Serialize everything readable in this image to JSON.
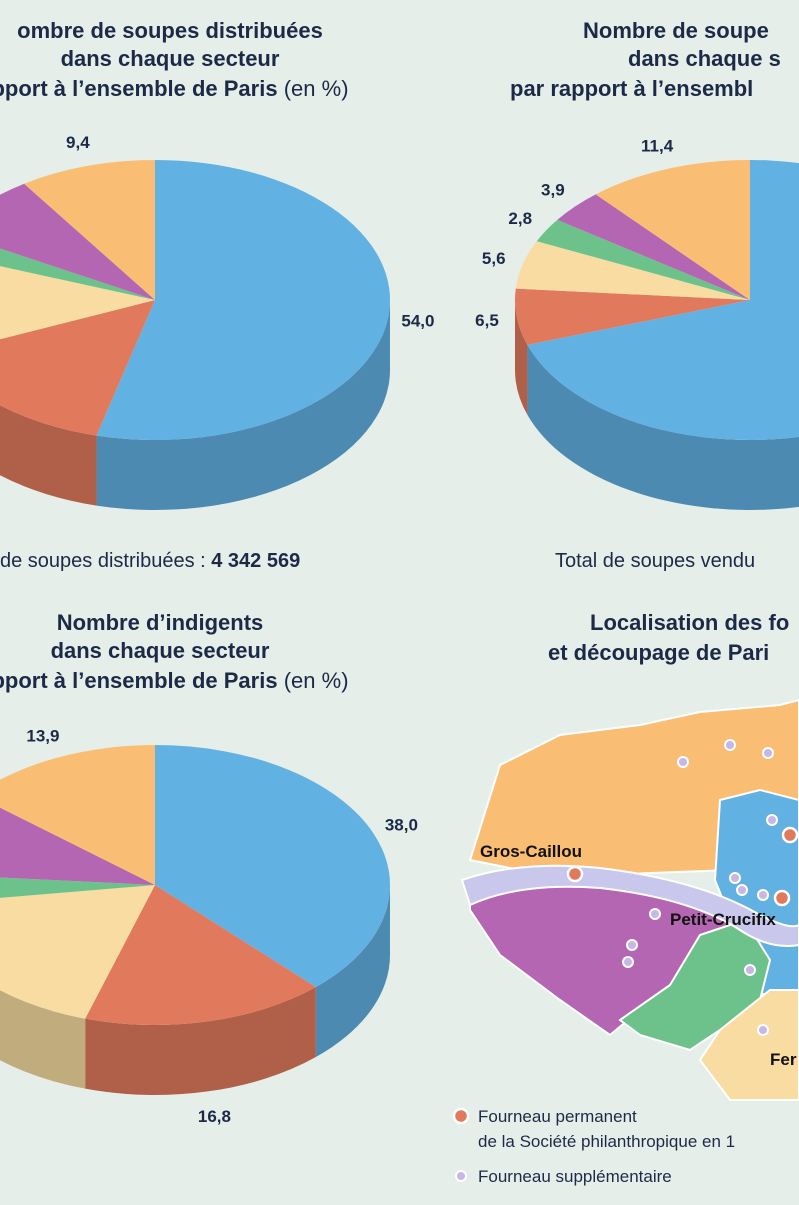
{
  "chart_data": [
    {
      "type": "pie",
      "title": [
        "ombre de soupes distribuées",
        "dans chaque secteur",
        "pport à l’ensemble de Paris"
      ],
      "unit": "(en %)",
      "values": [
        54.0,
        14.6,
        12.0,
        2.5,
        7.5,
        9.4
      ],
      "value_labels": [
        "54,0",
        null,
        null,
        null,
        null,
        "9,4"
      ],
      "colors": [
        "#62b1e3",
        "#e17a5d",
        "#f8dca2",
        "#6dc28b",
        "#b566b2",
        "#f9be74"
      ],
      "total_label": "de soupes distribuées : ",
      "total": "4 342 569"
    },
    {
      "type": "pie",
      "title": [
        "Nombre de soupe",
        "dans chaque s",
        "par rapport à l’ensembl"
      ],
      "values": [
        69.8,
        6.5,
        5.6,
        2.8,
        3.9,
        11.4
      ],
      "value_labels": [
        null,
        "6,5",
        "5,6",
        "2,8",
        "3,9",
        "11,4"
      ],
      "colors": [
        "#62b1e3",
        "#e17a5d",
        "#f8dca2",
        "#6dc28b",
        "#b566b2",
        "#f9be74"
      ],
      "total_label": "Total de soupes vendu"
    },
    {
      "type": "pie",
      "title": [
        "Nombre d’indigents",
        "dans chaque secteur",
        "pport à l’ensemble de Paris"
      ],
      "unit": "(en %)",
      "values": [
        38.0,
        16.8,
        18.0,
        3.5,
        9.8,
        13.9
      ],
      "value_labels": [
        "38,0",
        "16,8",
        null,
        null,
        null,
        "13,9"
      ],
      "colors": [
        "#62b1e3",
        "#e17a5d",
        "#f8dca2",
        "#6dc28b",
        "#b566b2",
        "#f9be74"
      ]
    }
  ],
  "map": {
    "title": [
      "Localisation des fo",
      "et découpage de Pari"
    ],
    "labels": [
      "Gros-Caillou",
      "Petit-Crucifix",
      "Fer"
    ],
    "legend": [
      "Fourneau permanent",
      "de la Société philanthropique en 1",
      "Fourneau supplémentaire"
    ]
  }
}
